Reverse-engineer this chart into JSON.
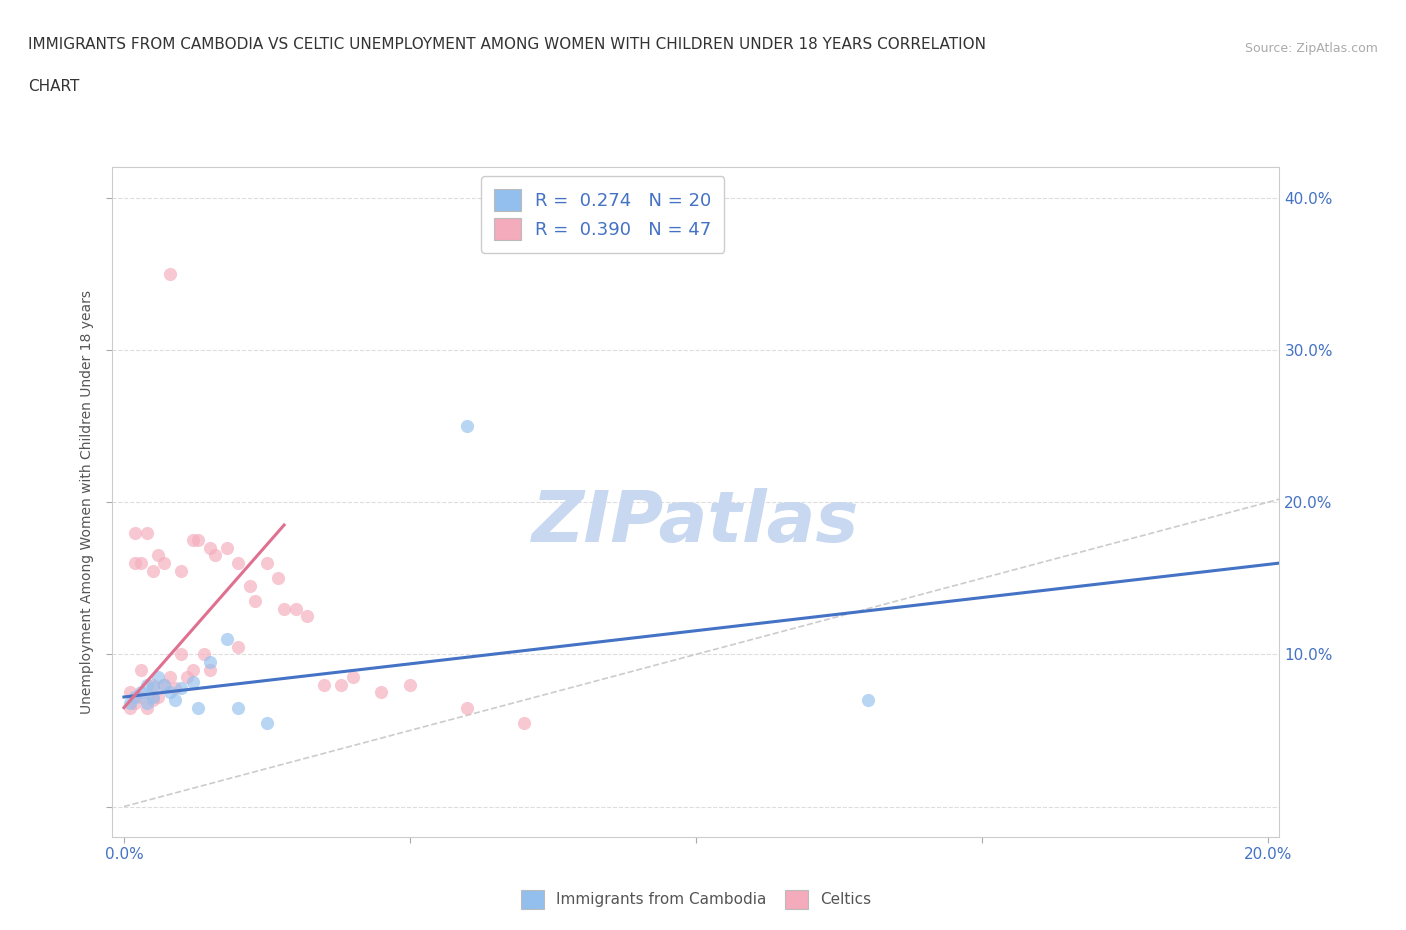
{
  "title": "IMMIGRANTS FROM CAMBODIA VS CELTIC UNEMPLOYMENT AMONG WOMEN WITH CHILDREN UNDER 18 YEARS CORRELATION\nCHART",
  "source": "Source: ZipAtlas.com",
  "ylabel": "Unemployment Among Women with Children Under 18 years",
  "xlim": [
    -0.002,
    0.202
  ],
  "ylim": [
    -0.02,
    0.42
  ],
  "yticks": [
    0.0,
    0.1,
    0.2,
    0.3,
    0.4
  ],
  "xticks": [
    0.0,
    0.05,
    0.1,
    0.15,
    0.2
  ],
  "xtick_labels": [
    "0.0%",
    "",
    "",
    "",
    "20.0%"
  ],
  "ytick_labels_right": [
    "",
    "10.0%",
    "20.0%",
    "30.0%",
    "40.0%"
  ],
  "legend1_label": "R =  0.274   N = 20",
  "legend2_label": "R =  0.390   N = 47",
  "legend_bottom_label1": "Immigrants from Cambodia",
  "legend_bottom_label2": "Celtics",
  "blue_color": "#92BFED",
  "pink_color": "#F4ABBB",
  "blue_line_color": "#4472C4",
  "pink_line_color": "#E07090",
  "diagonal_color": "#CCCCCC",
  "watermark_color": "#C8D8F0",
  "background_color": "#FFFFFF",
  "blue_scatter_x": [
    0.001,
    0.002,
    0.003,
    0.004,
    0.004,
    0.005,
    0.005,
    0.006,
    0.007,
    0.008,
    0.009,
    0.01,
    0.012,
    0.013,
    0.015,
    0.018,
    0.02,
    0.025,
    0.06,
    0.13
  ],
  "blue_scatter_y": [
    0.068,
    0.072,
    0.075,
    0.08,
    0.068,
    0.078,
    0.072,
    0.085,
    0.08,
    0.075,
    0.07,
    0.078,
    0.082,
    0.065,
    0.095,
    0.11,
    0.065,
    0.055,
    0.25,
    0.07
  ],
  "pink_scatter_x": [
    0.001,
    0.001,
    0.002,
    0.002,
    0.002,
    0.003,
    0.003,
    0.003,
    0.004,
    0.004,
    0.005,
    0.005,
    0.005,
    0.006,
    0.006,
    0.007,
    0.007,
    0.008,
    0.008,
    0.009,
    0.01,
    0.01,
    0.011,
    0.012,
    0.012,
    0.013,
    0.014,
    0.015,
    0.015,
    0.016,
    0.018,
    0.02,
    0.02,
    0.022,
    0.023,
    0.025,
    0.027,
    0.028,
    0.03,
    0.032,
    0.035,
    0.038,
    0.04,
    0.045,
    0.05,
    0.06,
    0.07
  ],
  "pink_scatter_y": [
    0.065,
    0.075,
    0.068,
    0.18,
    0.16,
    0.072,
    0.09,
    0.16,
    0.065,
    0.18,
    0.07,
    0.155,
    0.08,
    0.072,
    0.165,
    0.16,
    0.08,
    0.085,
    0.35,
    0.078,
    0.155,
    0.1,
    0.085,
    0.175,
    0.09,
    0.175,
    0.1,
    0.17,
    0.09,
    0.165,
    0.17,
    0.16,
    0.105,
    0.145,
    0.135,
    0.16,
    0.15,
    0.13,
    0.13,
    0.125,
    0.08,
    0.08,
    0.085,
    0.075,
    0.08,
    0.065,
    0.055
  ],
  "blue_line_x": [
    0.0,
    0.202
  ],
  "blue_line_y": [
    0.072,
    0.16
  ],
  "pink_line_x": [
    0.0,
    0.028
  ],
  "pink_line_y": [
    0.065,
    0.185
  ],
  "marker_size": 90,
  "marker_alpha": 0.65,
  "figsize": [
    14.06,
    9.3
  ],
  "dpi": 100
}
